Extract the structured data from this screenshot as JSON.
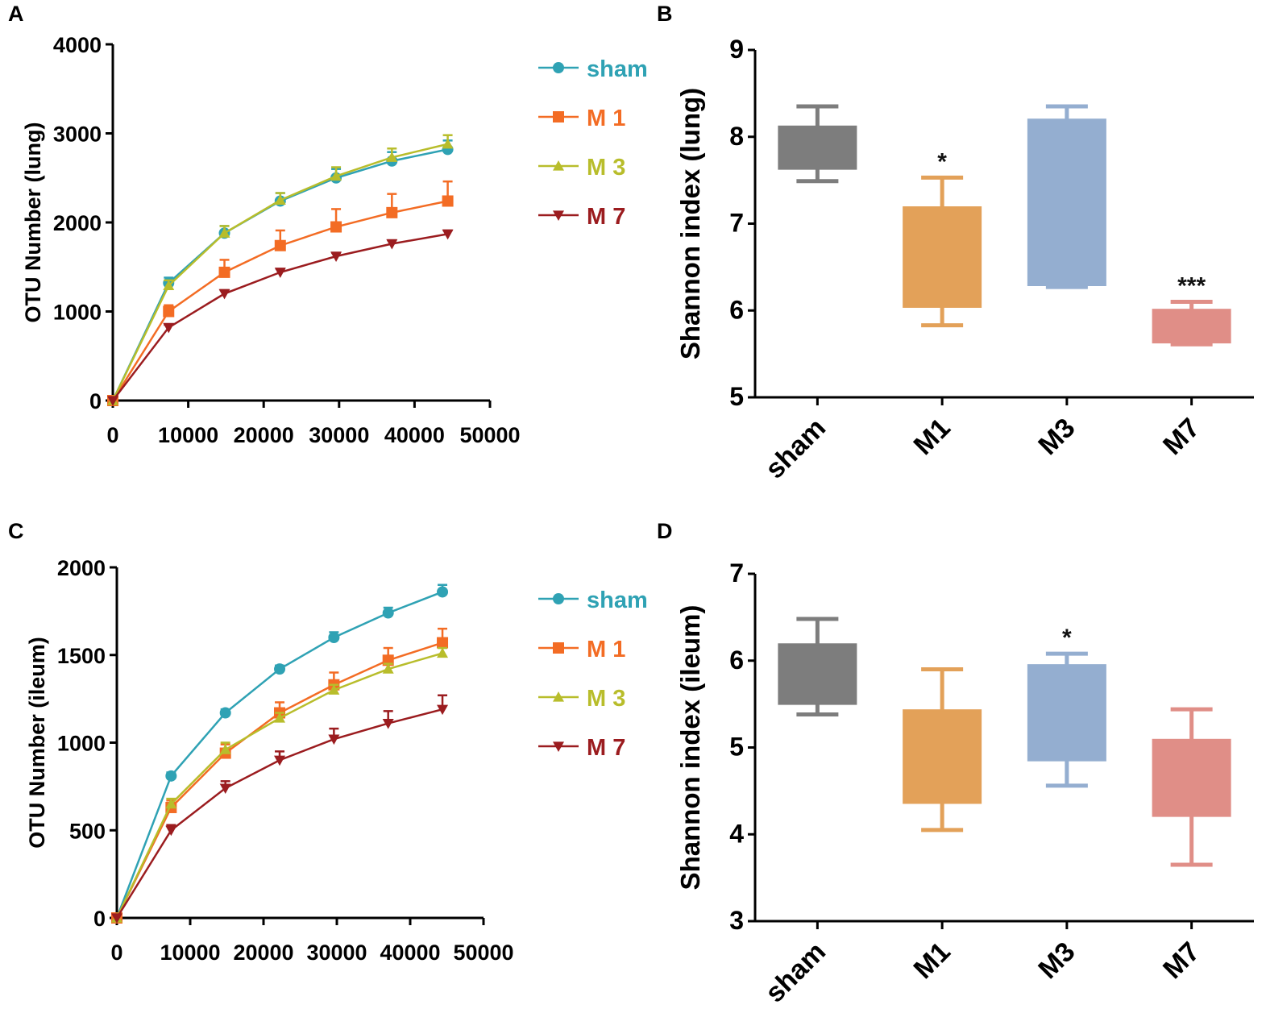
{
  "figure": {
    "panel_labels": [
      "A",
      "B",
      "C",
      "D"
    ]
  },
  "colors": {
    "sham": "#2fa2b4",
    "M1": "#f36c24",
    "M3": "#b8bd2b",
    "M7": "#9b1c1f",
    "box_sham": "#7d7d7d",
    "box_M1": "#e3a159",
    "box_M3": "#94aed0",
    "box_M7": "#e08e87"
  },
  "chart_data": [
    {
      "panel": "A",
      "type": "line",
      "title": "",
      "xlabel": "",
      "ylabel": "OTU Number (lung)",
      "xlim": [
        0,
        50000
      ],
      "ylim": [
        0,
        4000
      ],
      "xticks": [
        "0",
        "10000",
        "20000",
        "30000",
        "40000",
        "50000"
      ],
      "yticks": [
        "0",
        "1000",
        "2000",
        "3000",
        "4000"
      ],
      "x": [
        0,
        7400,
        14800,
        22200,
        29600,
        37000,
        44400
      ],
      "series": [
        {
          "name": "sham",
          "label": "sham",
          "marker": "circle",
          "values": [
            0,
            1320,
            1880,
            2240,
            2500,
            2690,
            2820
          ],
          "errors": [
            0,
            60,
            80,
            90,
            100,
            100,
            100
          ]
        },
        {
          "name": "M1",
          "label": "M 1",
          "marker": "square",
          "values": [
            0,
            1000,
            1440,
            1740,
            1950,
            2110,
            2240
          ],
          "errors": [
            0,
            70,
            140,
            170,
            200,
            210,
            220
          ]
        },
        {
          "name": "M3",
          "label": "M 3",
          "marker": "triangle",
          "values": [
            0,
            1290,
            1880,
            2250,
            2520,
            2730,
            2880
          ],
          "errors": [
            0,
            60,
            80,
            80,
            100,
            100,
            100
          ]
        },
        {
          "name": "M7",
          "label": "M 7",
          "marker": "triangle-down",
          "values": [
            0,
            820,
            1200,
            1440,
            1620,
            1760,
            1870
          ],
          "errors": [
            0,
            30,
            40,
            40,
            40,
            40,
            40
          ]
        }
      ],
      "legend": "right"
    },
    {
      "panel": "B",
      "type": "box",
      "title": "",
      "xlabel": "",
      "ylabel": "Shannon index (lung)",
      "ylim": [
        5,
        9
      ],
      "yticks": [
        "5",
        "6",
        "7",
        "8",
        "9"
      ],
      "categories": [
        "sham",
        "M1",
        "M3",
        "M7"
      ],
      "boxes": [
        {
          "min": 7.49,
          "q1": 7.63,
          "q3": 8.12,
          "max": 8.35,
          "sig": ""
        },
        {
          "min": 5.83,
          "q1": 6.04,
          "q3": 7.19,
          "max": 7.53,
          "sig": "*"
        },
        {
          "min": 6.27,
          "q1": 6.29,
          "q3": 8.2,
          "max": 8.35,
          "sig": ""
        },
        {
          "min": 5.61,
          "q1": 5.63,
          "q3": 6.01,
          "max": 6.1,
          "sig": "***"
        }
      ]
    },
    {
      "panel": "C",
      "type": "line",
      "title": "",
      "xlabel": "",
      "ylabel": "OTU Number (ileum)",
      "xlim": [
        0,
        50000
      ],
      "ylim": [
        0,
        2000
      ],
      "xticks": [
        "0",
        "10000",
        "20000",
        "30000",
        "40000",
        "50000"
      ],
      "yticks": [
        "0",
        "500",
        "1000",
        "1500",
        "2000"
      ],
      "x": [
        0,
        7400,
        14800,
        22200,
        29600,
        37000,
        44400
      ],
      "series": [
        {
          "name": "sham",
          "label": "sham",
          "marker": "circle",
          "values": [
            0,
            810,
            1170,
            1420,
            1600,
            1740,
            1860
          ],
          "errors": [
            0,
            20,
            20,
            20,
            30,
            30,
            40
          ]
        },
        {
          "name": "M1",
          "label": "M 1",
          "marker": "square",
          "values": [
            0,
            630,
            940,
            1170,
            1330,
            1470,
            1570
          ],
          "errors": [
            0,
            40,
            50,
            60,
            70,
            70,
            80
          ]
        },
        {
          "name": "M3",
          "label": "M 3",
          "marker": "triangle",
          "values": [
            0,
            650,
            960,
            1140,
            1300,
            1420,
            1510
          ],
          "errors": [
            0,
            30,
            40,
            30,
            30,
            30,
            30
          ]
        },
        {
          "name": "M7",
          "label": "M 7",
          "marker": "triangle-down",
          "values": [
            0,
            500,
            740,
            900,
            1020,
            1110,
            1190
          ],
          "errors": [
            0,
            30,
            40,
            50,
            60,
            70,
            80
          ]
        }
      ],
      "legend": "right"
    },
    {
      "panel": "D",
      "type": "box",
      "title": "",
      "xlabel": "",
      "ylabel": "Shannon index (ileum)",
      "ylim": [
        3,
        7
      ],
      "yticks": [
        "3",
        "4",
        "5",
        "6",
        "7"
      ],
      "categories": [
        "sham",
        "M1",
        "M3",
        "M7"
      ],
      "boxes": [
        {
          "min": 5.38,
          "q1": 5.5,
          "q3": 6.19,
          "max": 6.48,
          "sig": ""
        },
        {
          "min": 4.05,
          "q1": 4.36,
          "q3": 5.43,
          "max": 5.9,
          "sig": ""
        },
        {
          "min": 4.56,
          "q1": 4.85,
          "q3": 5.95,
          "max": 6.08,
          "sig": "*"
        },
        {
          "min": 3.65,
          "q1": 4.21,
          "q3": 5.09,
          "max": 5.44,
          "sig": ""
        }
      ]
    }
  ]
}
